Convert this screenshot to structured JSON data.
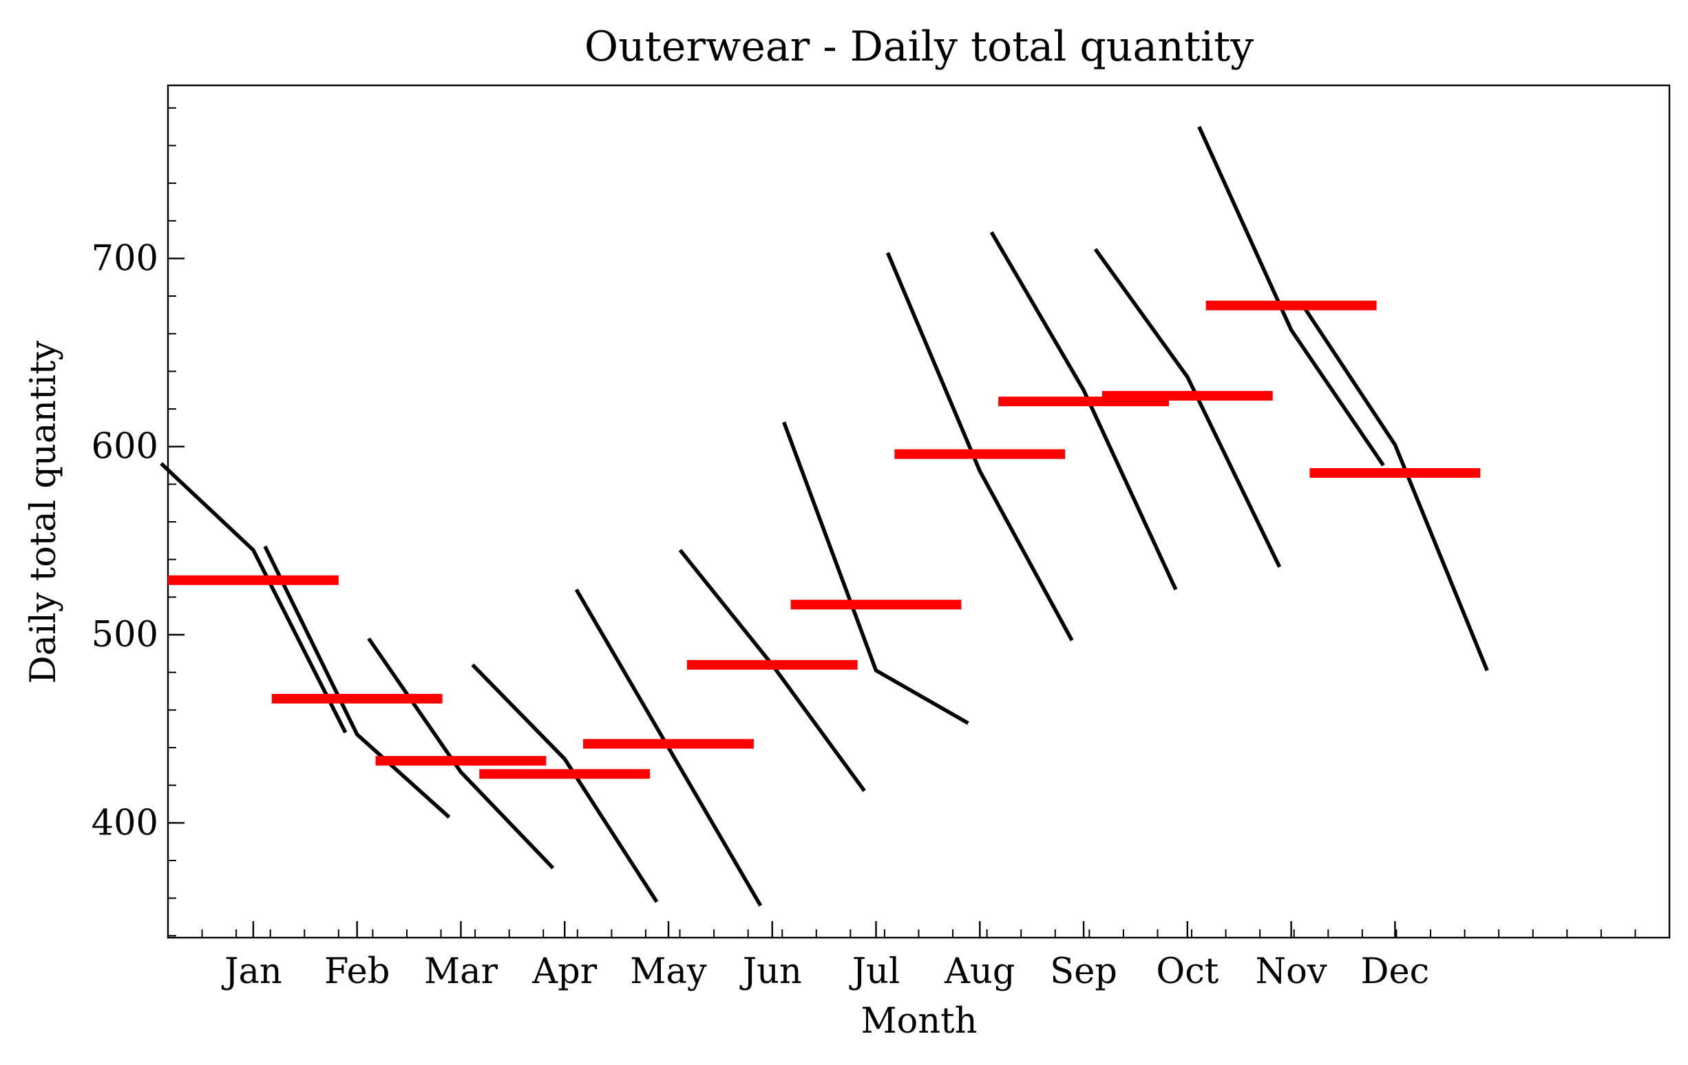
{
  "chart_data": {
    "type": "line",
    "title": "Outerwear - Daily total quantity",
    "xlabel": "Month",
    "ylabel": "Daily total quantity",
    "categories": [
      "Jan",
      "Feb",
      "Mar",
      "Apr",
      "May",
      "Jun",
      "Jul",
      "Aug",
      "Sep",
      "Oct",
      "Nov",
      "Dec"
    ],
    "ylim": [
      339,
      792
    ],
    "yticks": [
      400,
      500,
      600,
      700
    ],
    "grid": false,
    "series": [
      {
        "values": [
          [
            591,
            545,
            448
          ],
          [
            547,
            447,
            403
          ],
          [
            498,
            427,
            376
          ],
          [
            484,
            434,
            358
          ],
          [
            524,
            440,
            356
          ],
          [
            545,
            484,
            417
          ],
          [
            613,
            481,
            453
          ],
          [
            703,
            587,
            497
          ],
          [
            714,
            630,
            524
          ],
          [
            705,
            637,
            536
          ],
          [
            770,
            662,
            590
          ],
          [
            675,
            601,
            481
          ]
        ],
        "color": "#000000"
      },
      {
        "values": [
          529,
          466,
          433,
          426,
          442,
          484,
          516,
          596,
          624,
          627,
          675,
          586
        ],
        "color": "#ff0000"
      }
    ]
  }
}
